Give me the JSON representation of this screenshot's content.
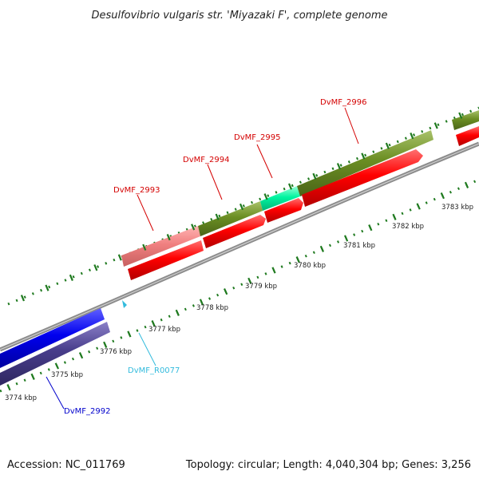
{
  "title": "Desulfovibrio vulgaris str. 'Miyazaki F', complete genome",
  "accession": "Accession: NC_011769",
  "topology": "Topology: circular; Length: 4,040,304 bp; Genes: 3,256",
  "colors": {
    "background": "#ffffff",
    "backbone": "#8c8c8c",
    "tick": "#1f7a1f",
    "red_gene": "#ff0000",
    "olive_gene": "#6b8e23",
    "pink_gene": "#f08080",
    "teal_gene": "#00f5a0",
    "blue_gene": "#0000ee",
    "slate_gene": "#483d8b",
    "red_label": "#d40000",
    "blue_label": "#0000cc",
    "cyan_label": "#33bbdd"
  },
  "ticks": [
    {
      "label": "3774 kbp"
    },
    {
      "label": "3775 kbp"
    },
    {
      "label": "3776 kbp"
    },
    {
      "label": "3777 kbp"
    },
    {
      "label": "3778 kbp"
    },
    {
      "label": "3779 kbp"
    },
    {
      "label": "3780 kbp"
    },
    {
      "label": "3781 kbp"
    },
    {
      "label": "3782 kbp"
    },
    {
      "label": "3783 kbp"
    }
  ],
  "gene_labels": [
    {
      "name": "DvMF_2993",
      "color": "red"
    },
    {
      "name": "DvMF_2994",
      "color": "red"
    },
    {
      "name": "DvMF_2995",
      "color": "red"
    },
    {
      "name": "DvMF_2996",
      "color": "red"
    },
    {
      "name": "DvMF_2992",
      "color": "blue"
    },
    {
      "name": "DvMF_R0077",
      "color": "cyan"
    }
  ]
}
